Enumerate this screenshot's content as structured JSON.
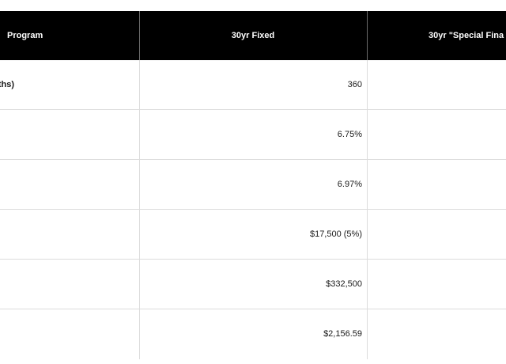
{
  "table": {
    "headers": [
      "Program",
      "30yr Fixed",
      "30yr \"Special Fina"
    ],
    "rows": [
      {
        "label": "ths)",
        "fixed": "360",
        "special": ""
      },
      {
        "label": "",
        "fixed": "6.75%",
        "special": ""
      },
      {
        "label": "",
        "fixed": "6.97%",
        "special": ""
      },
      {
        "label": "",
        "fixed": "$17,500 (5%)",
        "special": ""
      },
      {
        "label": "",
        "fixed": "$332,500",
        "special": ""
      },
      {
        "label": "",
        "fixed": "$2,156.59",
        "special": ""
      }
    ]
  },
  "colors": {
    "header_bg": "#000000",
    "header_text": "#ffffff",
    "grid": "#dcdcdc"
  }
}
